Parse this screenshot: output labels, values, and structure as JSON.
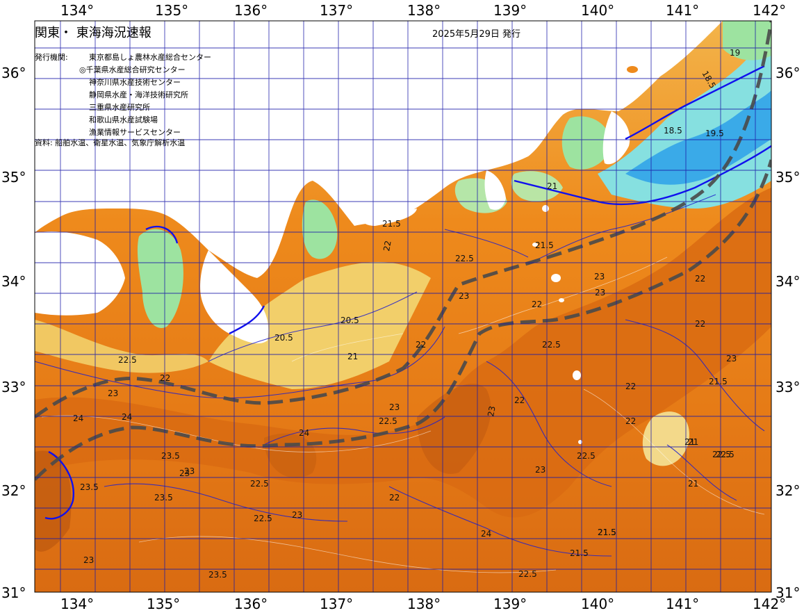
{
  "map": {
    "title": "関東・ 東海海況速報",
    "issue_date": "2025年5月29日 発行",
    "agency_header": "発行機関:",
    "agencies": [
      "東京都島しょ農林水産総合センター",
      "◎千葉県水産総合研究センター",
      "神奈川県水産技術センター",
      "静岡県水産・海洋技術研究所",
      "三重県水産研究所",
      "和歌山県水産試験場",
      "漁業情報サービスセンター"
    ],
    "source_note": "資料: 船舶水温、衛星水温、気象庁解析水温",
    "lon_labels": [
      "134°",
      "135°",
      "136°",
      "137°",
      "138°",
      "139°",
      "140°",
      "141°",
      "142°"
    ],
    "lat_labels": [
      "36°",
      "35°",
      "34°",
      "33°",
      "32°",
      "31°"
    ],
    "contour_labels": [
      "21.5",
      "22",
      "22.5",
      "20.5",
      "20.5",
      "21",
      "22",
      "22.5",
      "23",
      "23.5",
      "24",
      "24",
      "23",
      "22.5",
      "21",
      "22",
      "23",
      "23",
      "22.5",
      "22",
      "21.5",
      "21.5",
      "22",
      "19",
      "18.5",
      "19.5",
      "18.5",
      "21",
      "22.5",
      "23",
      "23",
      "24",
      "23",
      "22",
      "22.5",
      "22",
      "21.5",
      "22",
      "21",
      "22.5",
      "21.5",
      "23.5",
      "23",
      "22.5",
      "23",
      "23.5",
      "24",
      "23",
      "22",
      "23",
      "22.5",
      "21.5",
      "21.5",
      "23.5",
      "23",
      "22",
      "22.5",
      "21"
    ],
    "colors": {
      "cold": "#3aaae8",
      "cool": "#86e0e0",
      "mild": "#9de3a0",
      "warm": "#f2cf6a",
      "hot": "#ee8a1c",
      "hotter": "#d96b12",
      "hottest": "#bf5a10",
      "land": "#ffffff",
      "grid": "#1a1aa8",
      "current": "#4a4a4a",
      "isotherm": "#2020cc"
    }
  }
}
